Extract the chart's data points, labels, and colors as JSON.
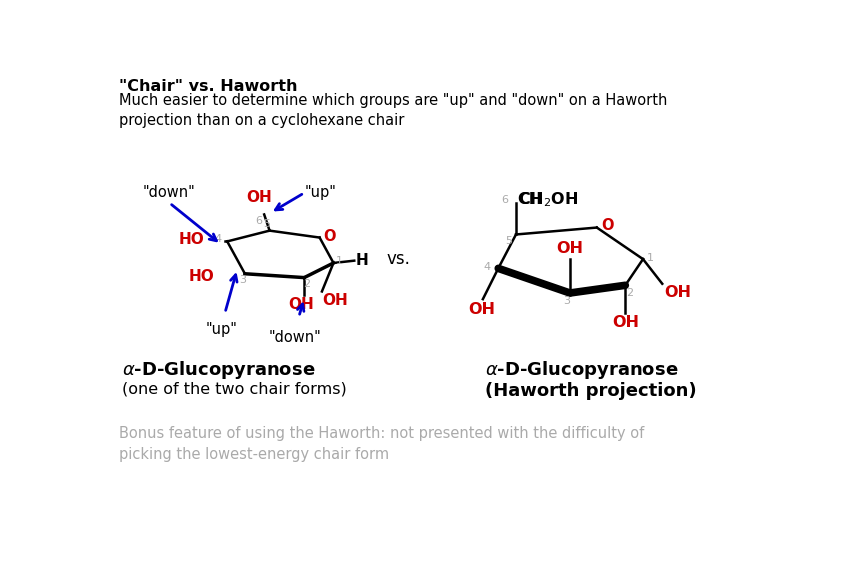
{
  "title_bold": "\"Chair\" vs. Haworth",
  "subtitle": "Much easier to determine which groups are \"up\" and \"down\" on a Haworth\nprojection than on a cyclohexane chair",
  "vs_text": "vs.",
  "left_label1": "α-D-Glucopyranose",
  "left_label2": "(one of the two chair forms)",
  "right_label1": "α-D-Glucopyranose",
  "right_label2": "(Haworth projection)",
  "bonus_text": "Bonus feature of using the Haworth: not presented with the difficulty of\npicking the lowest-energy chair form",
  "bg_color": "#ffffff",
  "black": "#000000",
  "red": "#cc0000",
  "blue": "#0000cc",
  "gray": "#aaaaaa",
  "dark_gray": "#888888"
}
